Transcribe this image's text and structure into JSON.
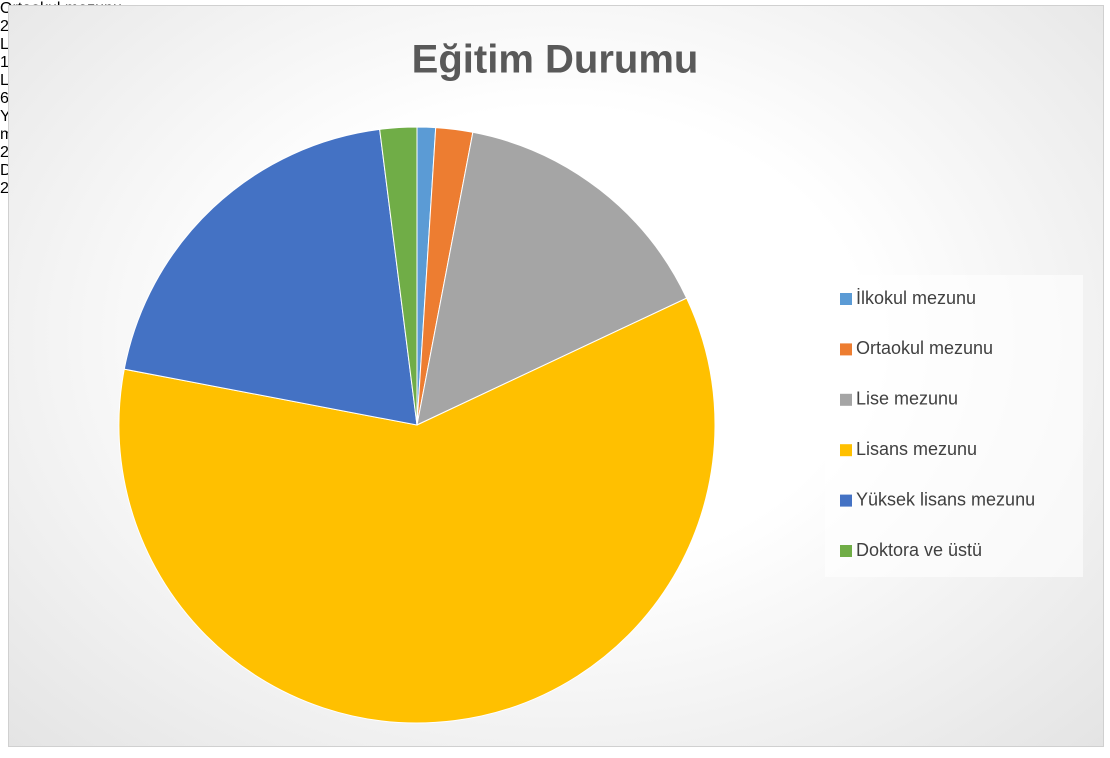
{
  "chart_data": {
    "type": "pie",
    "title": "Eğitim Durumu",
    "categories": [
      "İlkokul mezunu",
      "Ortaokul mezunu",
      "Lise mezunu",
      "Lisans mezunu",
      "Yüksek lisans mezunu",
      "Doktora ve üstü"
    ],
    "values": [
      1,
      2,
      15,
      60,
      20,
      2
    ],
    "value_labels": [
      null,
      "2%",
      "15%",
      "60%",
      "20%",
      "2%"
    ],
    "colors": [
      "#5b9bd5",
      "#ed7d31",
      "#a5a5a5",
      "#ffc000",
      "#4472c4",
      "#70ad47"
    ],
    "legend": "right"
  }
}
